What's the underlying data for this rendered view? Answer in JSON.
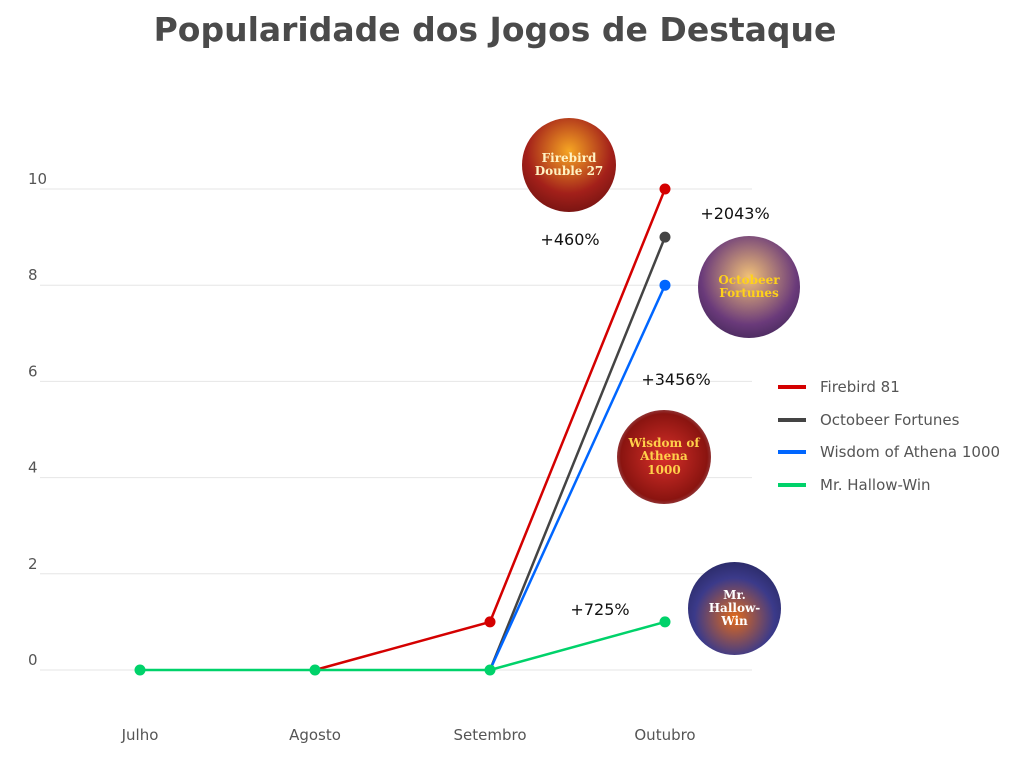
{
  "chart_data": {
    "type": "line",
    "title": "Popularidade dos Jogos de Destaque",
    "xlabel": "",
    "ylabel": "",
    "categories": [
      "Julho",
      "Agosto",
      "Setembro",
      "Outubro"
    ],
    "ylim": [
      0,
      10
    ],
    "yticks": [
      "0",
      "2",
      "4",
      "6",
      "8",
      "10"
    ],
    "grid": true,
    "legend_position": "right",
    "series": [
      {
        "name": "Firebird 81",
        "color": "#d40000",
        "values": [
          null,
          0,
          1,
          10
        ]
      },
      {
        "name": "Octobeer Fortunes",
        "color": "#444444",
        "values": [
          null,
          null,
          0,
          9
        ]
      },
      {
        "name": "Wisdom of Athena 1000",
        "color": "#0066ff",
        "values": [
          null,
          null,
          0,
          8
        ]
      },
      {
        "name": "Mr. Hallow-Win",
        "color": "#00d26a",
        "values": [
          0,
          0,
          0,
          1
        ]
      }
    ],
    "annotations": [
      {
        "text": "+460%",
        "series": "Firebird 81"
      },
      {
        "text": "+2043%",
        "series": "Octobeer Fortunes"
      },
      {
        "text": "+3456%",
        "series": "Wisdom of Athena 1000"
      },
      {
        "text": "+725%",
        "series": "Mr. Hallow-Win"
      }
    ],
    "game_logos": [
      "Firebird Double 27",
      "Octobeer Fortunes",
      "Wisdom of Athena 1000",
      "Mr. Hallow-Win"
    ]
  }
}
